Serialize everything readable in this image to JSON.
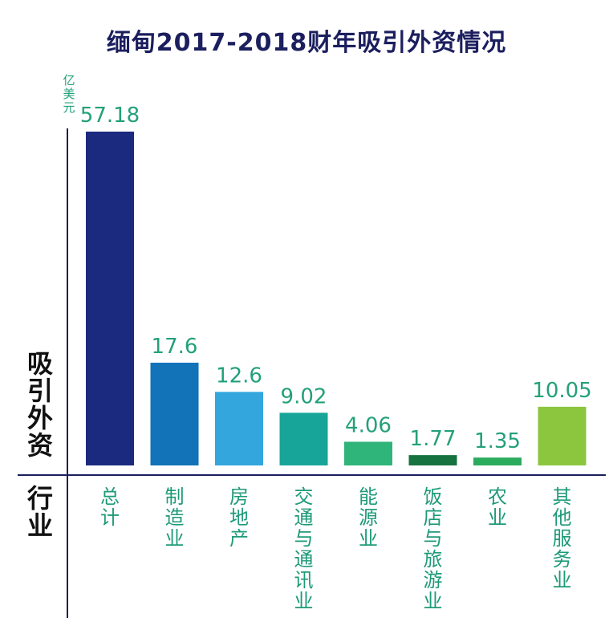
{
  "chart_data": {
    "type": "bar",
    "title": "缅甸2017-2018财年吸引外资情况",
    "unit_label": "亿美元",
    "ylabel": "吸引外资",
    "xlabel": "行业",
    "categories": [
      "总计",
      "制造业",
      "房地产",
      "交通与通讯业",
      "能源业",
      "饭店与旅游业",
      "农业",
      "其他服务业"
    ],
    "values": [
      57.18,
      17.6,
      12.6,
      9.02,
      4.06,
      1.77,
      1.35,
      10.05
    ],
    "value_labels": [
      "57.18",
      "17.6",
      "12.6",
      "9.02",
      "4.06",
      "1.77",
      "1.35",
      "10.05"
    ],
    "ylim": [
      0,
      57.18
    ],
    "colors": [
      "#1b2a7e",
      "#1273b8",
      "#33a6de",
      "#17a59a",
      "#2fb47a",
      "#16723f",
      "#2bab5c",
      "#8cc63f"
    ],
    "axis_color": "#1b1f5e"
  }
}
